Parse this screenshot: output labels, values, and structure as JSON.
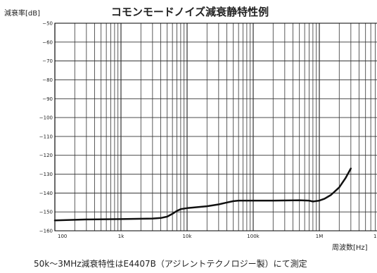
{
  "chart_data": {
    "type": "line",
    "title": "コモンモードノイズ減衰静特性例",
    "ylabel": "減衰率[dB]",
    "xlabel": "周波数[Hz]",
    "x_scale": "log",
    "xlim": [
      100,
      10000000
    ],
    "ylim": [
      -160,
      -50
    ],
    "grid": true,
    "y_ticks": [
      -50,
      -60,
      -70,
      -80,
      -90,
      -100,
      -110,
      -120,
      -130,
      -140,
      -150,
      -160
    ],
    "y_tick_labels": [
      "−50",
      "−60",
      "−70",
      "−80",
      "−90",
      "−100",
      "−110",
      "−120",
      "−130",
      "−140",
      "−150",
      "−160"
    ],
    "x_ticks": [
      100,
      1000,
      10000,
      100000,
      1000000,
      10000000
    ],
    "x_tick_labels": [
      "100",
      "1k",
      "10k",
      "100k",
      "1M",
      "10M"
    ],
    "series": [
      {
        "x": [
          100,
          300,
          1000,
          3000,
          4000,
          5000,
          6000,
          7000,
          8000,
          10000,
          20000,
          30000,
          40000,
          50000,
          60000,
          100000,
          200000,
          500000,
          700000,
          800000,
          1000000,
          1200000,
          1500000,
          2000000,
          2500000,
          3000000
        ],
        "y": [
          -154.5,
          -154.0,
          -153.8,
          -153.5,
          -153.2,
          -152.5,
          -151.0,
          -149.5,
          -148.5,
          -148.0,
          -147.0,
          -146.0,
          -145.0,
          -144.3,
          -144.0,
          -144.0,
          -144.0,
          -143.8,
          -144.0,
          -144.5,
          -144.0,
          -143.0,
          -141.0,
          -137.0,
          -132.0,
          -127.0
        ],
        "color": "#111111"
      }
    ]
  },
  "caption": "50k～3MHz減衰特性はE4407B（アジレントテクノロジー製）にて測定"
}
